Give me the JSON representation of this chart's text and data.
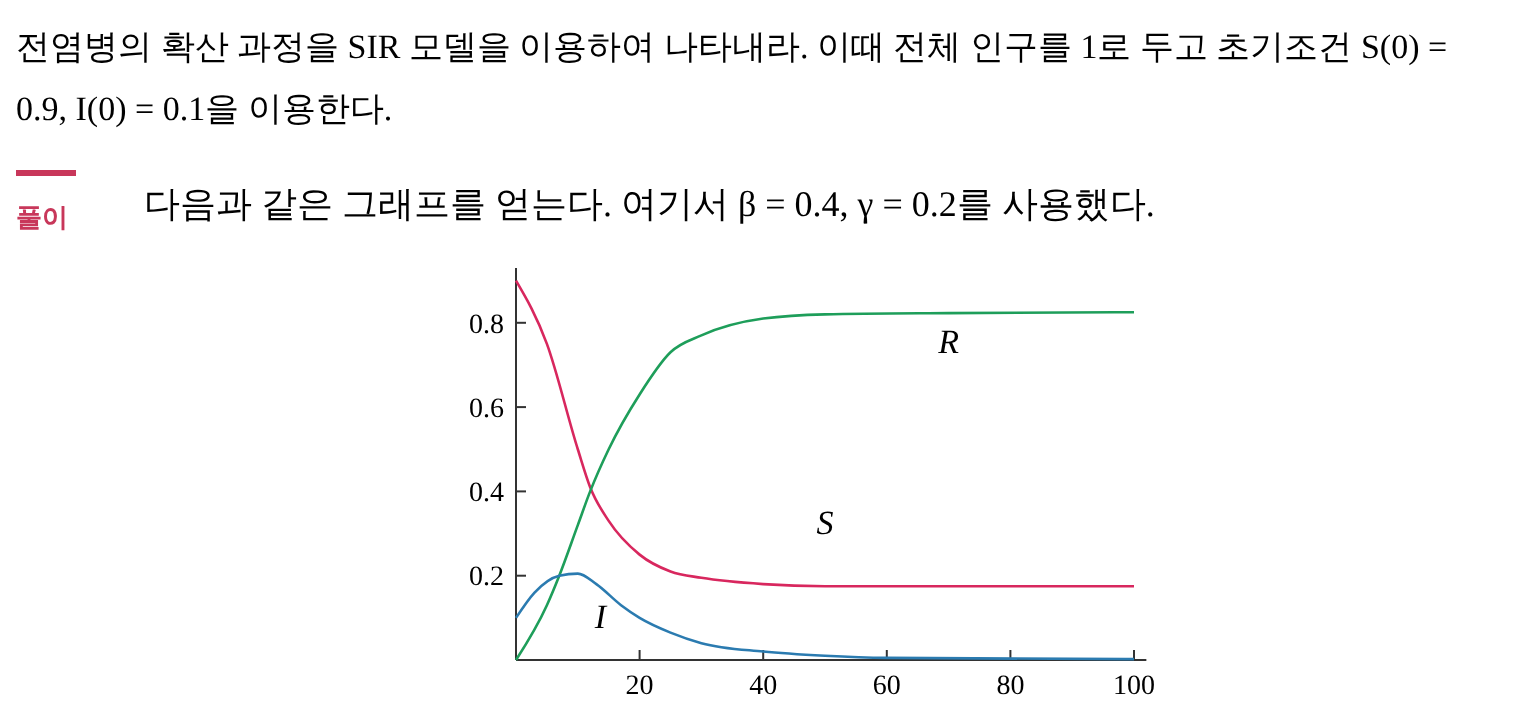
{
  "chart_data": {
    "type": "line",
    "title": "전염병의 확산 과정을 SIR 모델을 이용하여 나타내라. 이때 전체 인구를 1로 두고 초기조건 S(0) = 0.9, I(0) = 0.1을 이용한다.",
    "annotations": [
      "풀이",
      "다음과 같은 그래프를 얻는다. 여기서 β = 0.4, γ = 0.2를 사용했다."
    ],
    "series": [
      {
        "name": "S",
        "color": "#d8275e",
        "x": [
          0,
          5,
          10,
          12,
          15,
          20,
          25,
          30,
          40,
          50,
          70,
          100
        ],
        "values": [
          0.9,
          0.75,
          0.5,
          0.41,
          0.33,
          0.25,
          0.21,
          0.195,
          0.18,
          0.175,
          0.175,
          0.175
        ]
      },
      {
        "name": "R",
        "color": "#1e9e5a",
        "x": [
          0,
          5,
          7,
          10,
          12,
          15,
          20,
          25,
          30,
          40,
          50,
          70,
          100
        ],
        "values": [
          0,
          0.13,
          0.2,
          0.32,
          0.4,
          0.5,
          0.63,
          0.73,
          0.77,
          0.81,
          0.82,
          0.823,
          0.825
        ]
      },
      {
        "name": "I",
        "color": "#2b7bb0",
        "x": [
          0,
          3,
          7,
          10,
          13,
          17,
          20,
          25,
          30,
          40,
          50,
          60,
          100
        ],
        "values": [
          0.1,
          0.16,
          0.2,
          0.205,
          0.18,
          0.13,
          0.1,
          0.065,
          0.04,
          0.02,
          0.01,
          0.005,
          0.002
        ]
      }
    ],
    "xlim": [
      0,
      102
    ],
    "xticks": [
      20,
      40,
      60,
      80,
      100
    ],
    "ylim": [
      0,
      0.93
    ],
    "yticks": [
      0.2,
      0.4,
      0.6,
      0.8
    ]
  }
}
